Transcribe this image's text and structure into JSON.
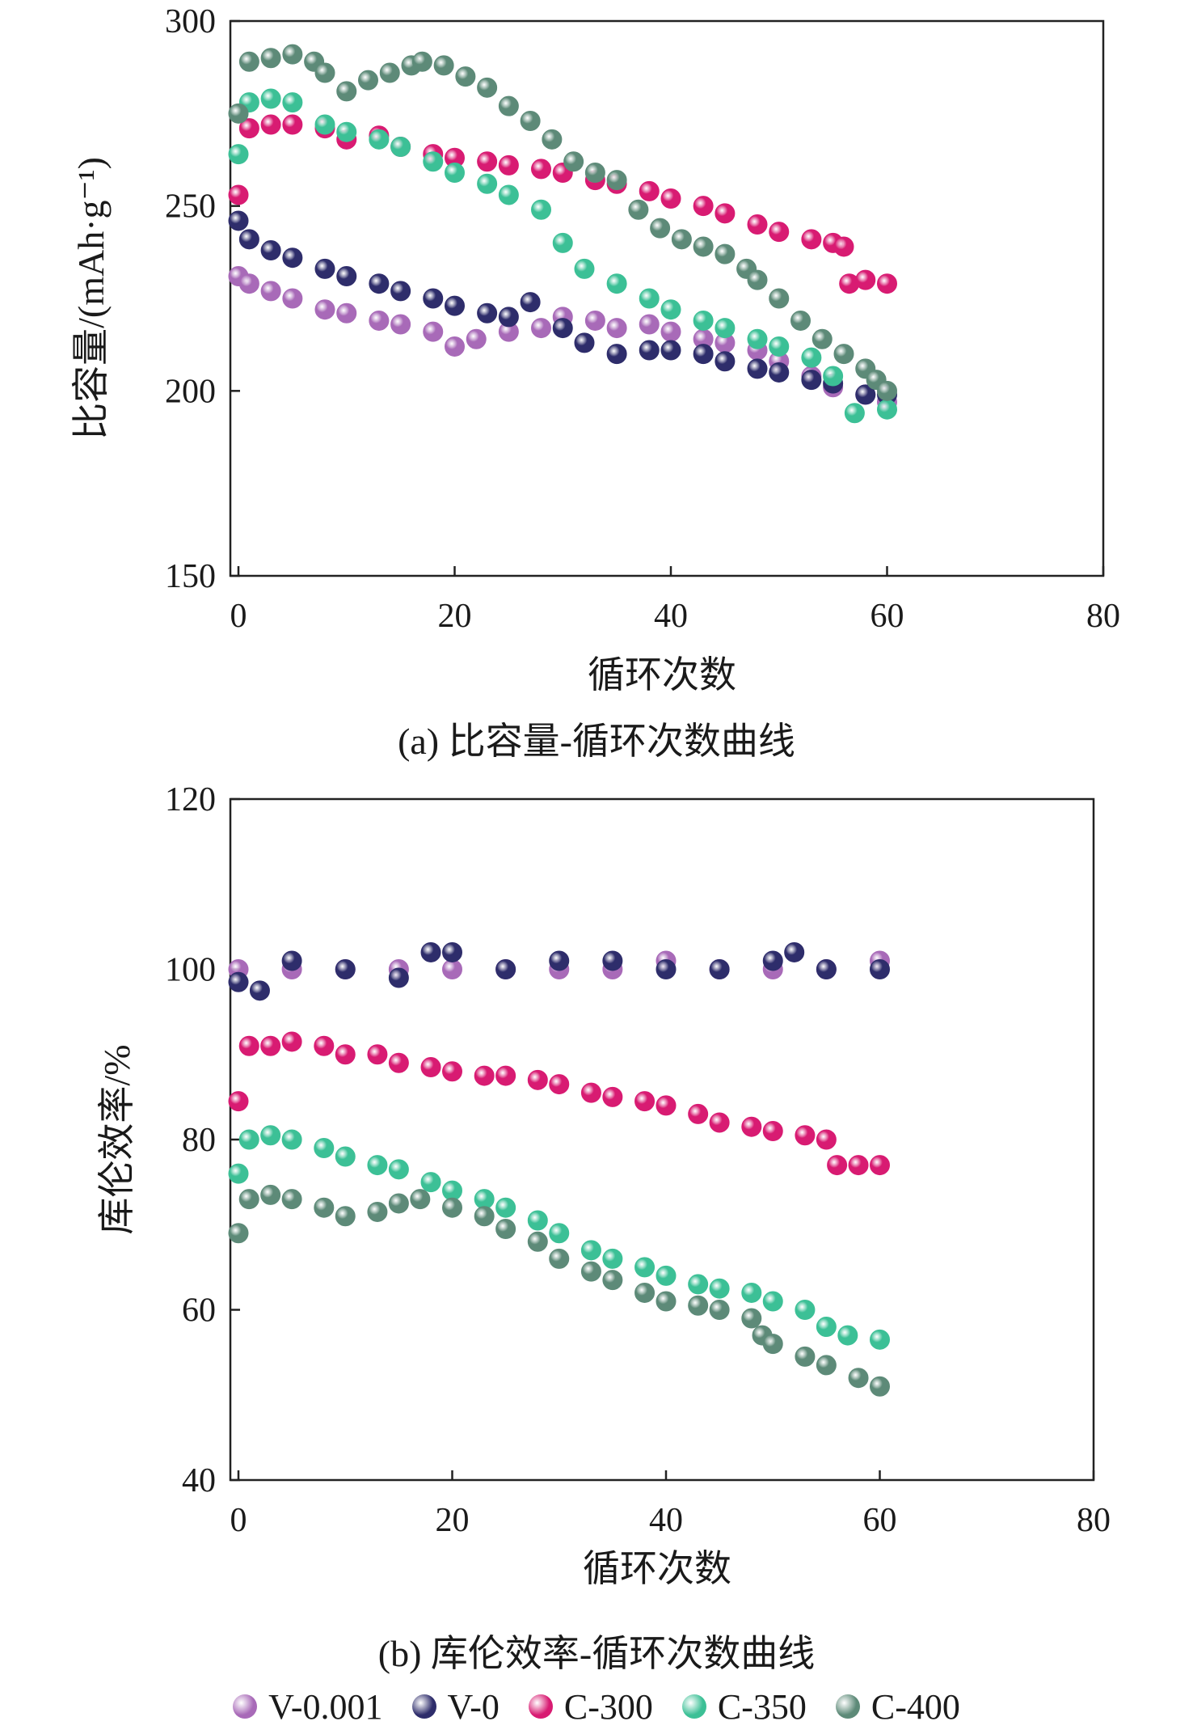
{
  "legend": {
    "items": [
      {
        "name": "V-0.001",
        "color": "#a86ab8"
      },
      {
        "name": "V-0",
        "color": "#2e2d6b"
      },
      {
        "name": "C-300",
        "color": "#d81b72"
      },
      {
        "name": "C-350",
        "color": "#3cc096"
      },
      {
        "name": "C-400",
        "color": "#5d8a78"
      }
    ]
  },
  "chart_data": [
    {
      "type": "scatter",
      "caption": "(a) 比容量-循环次数曲线",
      "xlabel": "循环次数",
      "ylabel": "比容量/(mAh·g⁻¹)",
      "xlim": [
        0,
        80
      ],
      "ylim": [
        150,
        300
      ],
      "xticks": [
        "0",
        "20",
        "40",
        "60",
        "80"
      ],
      "yticks": [
        "150",
        "200",
        "250",
        "300"
      ],
      "series": [
        {
          "name": "V-0.001",
          "points": [
            [
              0,
              231
            ],
            [
              1,
              229
            ],
            [
              3,
              227
            ],
            [
              5,
              225
            ],
            [
              8,
              222
            ],
            [
              10,
              221
            ],
            [
              13,
              219
            ],
            [
              15,
              218
            ],
            [
              18,
              216
            ],
            [
              20,
              212
            ],
            [
              22,
              214
            ],
            [
              25,
              216
            ],
            [
              28,
              217
            ],
            [
              30,
              220
            ],
            [
              33,
              219
            ],
            [
              35,
              217
            ],
            [
              38,
              218
            ],
            [
              40,
              216
            ],
            [
              43,
              214
            ],
            [
              45,
              213
            ],
            [
              48,
              211
            ],
            [
              50,
              208
            ],
            [
              53,
              204
            ],
            [
              55,
              201
            ],
            [
              58,
              199
            ],
            [
              60,
              197
            ]
          ]
        },
        {
          "name": "V-0",
          "points": [
            [
              0,
              246
            ],
            [
              1,
              241
            ],
            [
              3,
              238
            ],
            [
              5,
              236
            ],
            [
              8,
              233
            ],
            [
              10,
              231
            ],
            [
              13,
              229
            ],
            [
              15,
              227
            ],
            [
              18,
              225
            ],
            [
              20,
              223
            ],
            [
              23,
              221
            ],
            [
              25,
              220
            ],
            [
              27,
              224
            ],
            [
              30,
              217
            ],
            [
              32,
              213
            ],
            [
              35,
              210
            ],
            [
              38,
              211
            ],
            [
              40,
              211
            ],
            [
              43,
              210
            ],
            [
              45,
              208
            ],
            [
              48,
              206
            ],
            [
              50,
              205
            ],
            [
              53,
              203
            ],
            [
              55,
              202
            ],
            [
              58,
              199
            ],
            [
              60,
              199
            ]
          ]
        },
        {
          "name": "C-300",
          "points": [
            [
              0,
              253
            ],
            [
              1,
              271
            ],
            [
              3,
              272
            ],
            [
              5,
              272
            ],
            [
              8,
              271
            ],
            [
              10,
              268
            ],
            [
              13,
              269
            ],
            [
              15,
              266
            ],
            [
              18,
              264
            ],
            [
              20,
              263
            ],
            [
              23,
              262
            ],
            [
              25,
              261
            ],
            [
              28,
              260
            ],
            [
              30,
              259
            ],
            [
              33,
              257
            ],
            [
              35,
              256
            ],
            [
              38,
              254
            ],
            [
              40,
              252
            ],
            [
              43,
              250
            ],
            [
              45,
              248
            ],
            [
              48,
              245
            ],
            [
              50,
              243
            ],
            [
              53,
              241
            ],
            [
              55,
              240
            ],
            [
              56,
              239
            ],
            [
              56.5,
              229
            ],
            [
              58,
              230
            ],
            [
              60,
              229
            ]
          ]
        },
        {
          "name": "C-350",
          "points": [
            [
              0,
              264
            ],
            [
              1,
              278
            ],
            [
              3,
              279
            ],
            [
              5,
              278
            ],
            [
              8,
              272
            ],
            [
              10,
              270
            ],
            [
              13,
              268
            ],
            [
              15,
              266
            ],
            [
              18,
              262
            ],
            [
              20,
              259
            ],
            [
              23,
              256
            ],
            [
              25,
              253
            ],
            [
              28,
              249
            ],
            [
              30,
              240
            ],
            [
              32,
              233
            ],
            [
              35,
              229
            ],
            [
              38,
              225
            ],
            [
              40,
              222
            ],
            [
              43,
              219
            ],
            [
              45,
              217
            ],
            [
              48,
              214
            ],
            [
              50,
              212
            ],
            [
              53,
              209
            ],
            [
              55,
              204
            ],
            [
              57,
              194
            ],
            [
              60,
              195
            ]
          ]
        },
        {
          "name": "C-400",
          "points": [
            [
              0,
              275
            ],
            [
              1,
              289
            ],
            [
              3,
              290
            ],
            [
              5,
              291
            ],
            [
              7,
              289
            ],
            [
              8,
              286
            ],
            [
              10,
              281
            ],
            [
              12,
              284
            ],
            [
              14,
              286
            ],
            [
              16,
              288
            ],
            [
              17,
              289
            ],
            [
              19,
              288
            ],
            [
              21,
              285
            ],
            [
              23,
              282
            ],
            [
              25,
              277
            ],
            [
              27,
              273
            ],
            [
              29,
              268
            ],
            [
              31,
              262
            ],
            [
              33,
              259
            ],
            [
              35,
              257
            ],
            [
              37,
              249
            ],
            [
              39,
              244
            ],
            [
              41,
              241
            ],
            [
              43,
              239
            ],
            [
              45,
              237
            ],
            [
              47,
              233
            ],
            [
              48,
              230
            ],
            [
              50,
              225
            ],
            [
              52,
              219
            ],
            [
              54,
              214
            ],
            [
              56,
              210
            ],
            [
              58,
              206
            ],
            [
              59,
              203
            ],
            [
              60,
              200
            ]
          ]
        }
      ]
    },
    {
      "type": "scatter",
      "caption": "(b) 库伦效率-循环次数曲线",
      "xlabel": "循环次数",
      "ylabel": "库伦效率/%",
      "xlim": [
        0,
        80
      ],
      "ylim": [
        40,
        120
      ],
      "xticks": [
        "0",
        "20",
        "40",
        "60",
        "80"
      ],
      "yticks": [
        "40",
        "60",
        "80",
        "100",
        "120"
      ],
      "series": [
        {
          "name": "V-0.001",
          "points": [
            [
              0,
              100
            ],
            [
              5,
              100
            ],
            [
              10,
              100
            ],
            [
              15,
              100
            ],
            [
              20,
              100
            ],
            [
              25,
              100
            ],
            [
              30,
              100
            ],
            [
              35,
              100
            ],
            [
              40,
              101
            ],
            [
              45,
              100
            ],
            [
              50,
              100
            ],
            [
              55,
              100
            ],
            [
              60,
              101
            ]
          ]
        },
        {
          "name": "V-0",
          "points": [
            [
              0,
              98.5
            ],
            [
              2,
              97.5
            ],
            [
              5,
              101
            ],
            [
              10,
              100
            ],
            [
              15,
              99
            ],
            [
              18,
              102
            ],
            [
              20,
              102
            ],
            [
              25,
              100
            ],
            [
              30,
              101
            ],
            [
              35,
              101
            ],
            [
              40,
              100
            ],
            [
              45,
              100
            ],
            [
              50,
              101
            ],
            [
              52,
              102
            ],
            [
              55,
              100
            ],
            [
              60,
              100
            ]
          ]
        },
        {
          "name": "C-300",
          "points": [
            [
              0,
              84.5
            ],
            [
              1,
              91
            ],
            [
              3,
              91
            ],
            [
              5,
              91.5
            ],
            [
              8,
              91
            ],
            [
              10,
              90
            ],
            [
              13,
              90
            ],
            [
              15,
              89
            ],
            [
              18,
              88.5
            ],
            [
              20,
              88
            ],
            [
              23,
              87.5
            ],
            [
              25,
              87.5
            ],
            [
              28,
              87
            ],
            [
              30,
              86.5
            ],
            [
              33,
              85.5
            ],
            [
              35,
              85
            ],
            [
              38,
              84.5
            ],
            [
              40,
              84
            ],
            [
              43,
              83
            ],
            [
              45,
              82
            ],
            [
              48,
              81.5
            ],
            [
              50,
              81
            ],
            [
              53,
              80.5
            ],
            [
              55,
              80
            ],
            [
              56,
              77
            ],
            [
              58,
              77
            ],
            [
              60,
              77
            ]
          ]
        },
        {
          "name": "C-350",
          "points": [
            [
              0,
              76
            ],
            [
              1,
              80
            ],
            [
              3,
              80.5
            ],
            [
              5,
              80
            ],
            [
              8,
              79
            ],
            [
              10,
              78
            ],
            [
              13,
              77
            ],
            [
              15,
              76.5
            ],
            [
              18,
              75
            ],
            [
              20,
              74
            ],
            [
              23,
              73
            ],
            [
              25,
              72
            ],
            [
              28,
              70.5
            ],
            [
              30,
              69
            ],
            [
              33,
              67
            ],
            [
              35,
              66
            ],
            [
              38,
              65
            ],
            [
              40,
              64
            ],
            [
              43,
              63
            ],
            [
              45,
              62.5
            ],
            [
              48,
              62
            ],
            [
              50,
              61
            ],
            [
              53,
              60
            ],
            [
              55,
              58
            ],
            [
              57,
              57
            ],
            [
              60,
              56.5
            ]
          ]
        },
        {
          "name": "C-400",
          "points": [
            [
              0,
              69
            ],
            [
              1,
              73
            ],
            [
              3,
              73.5
            ],
            [
              5,
              73
            ],
            [
              8,
              72
            ],
            [
              10,
              71
            ],
            [
              13,
              71.5
            ],
            [
              15,
              72.5
            ],
            [
              17,
              73
            ],
            [
              20,
              72
            ],
            [
              23,
              71
            ],
            [
              25,
              69.5
            ],
            [
              28,
              68
            ],
            [
              30,
              66
            ],
            [
              33,
              64.5
            ],
            [
              35,
              63.5
            ],
            [
              38,
              62
            ],
            [
              40,
              61
            ],
            [
              43,
              60.5
            ],
            [
              45,
              60
            ],
            [
              48,
              59
            ],
            [
              49,
              57
            ],
            [
              50,
              56
            ],
            [
              53,
              54.5
            ],
            [
              55,
              53.5
            ],
            [
              58,
              52
            ],
            [
              60,
              51
            ]
          ]
        }
      ]
    }
  ]
}
